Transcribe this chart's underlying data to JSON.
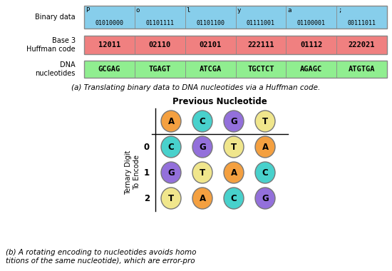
{
  "binary_data_label": "Binary data",
  "binary_row": [
    {
      "char": "P",
      "bits": "01010000"
    },
    {
      "char": "o",
      "bits": "01101111"
    },
    {
      "char": "l",
      "bits": "01101100"
    },
    {
      "char": "y",
      "bits": "01111001"
    },
    {
      "char": "a",
      "bits": "01100001"
    },
    {
      "char": ";",
      "bits": "00111011"
    }
  ],
  "huffman_label": "Base 3\nHuffman code",
  "huffman_row": [
    "12011",
    "02110",
    "02101",
    "222111",
    "01112",
    "222021"
  ],
  "dna_label": "DNA\nnucleotides",
  "dna_row": [
    "GCGAG",
    "TGAGT",
    "ATCGA",
    "TGCTCT",
    "AGAGC",
    "ATGTGA"
  ],
  "binary_bg": "#87CEEB",
  "huffman_bg": "#F08080",
  "dna_bg": "#90EE90",
  "caption_a": "(a) Translating binary data to DNA nucleotides via a Huffman code.",
  "table_title": "Previous Nucleotide",
  "prev_nucleotides": [
    "A",
    "C",
    "G",
    "T"
  ],
  "ternary_label": "Ternary Digit\nTo Encode",
  "ternary_digits": [
    "0",
    "1",
    "2"
  ],
  "table_data": [
    [
      "C",
      "G",
      "T",
      "A"
    ],
    [
      "G",
      "T",
      "A",
      "C"
    ],
    [
      "T",
      "A",
      "C",
      "G"
    ]
  ],
  "nucleotide_colors": {
    "A": "#F4A040",
    "C": "#48D1CC",
    "G": "#9370DB",
    "T": "#F0E68C"
  },
  "caption_b_line1": "(b) A rotating encoding to nucleotides avoids homo",
  "caption_b_line2": "titions of the same nucleotide), which are error-pro"
}
